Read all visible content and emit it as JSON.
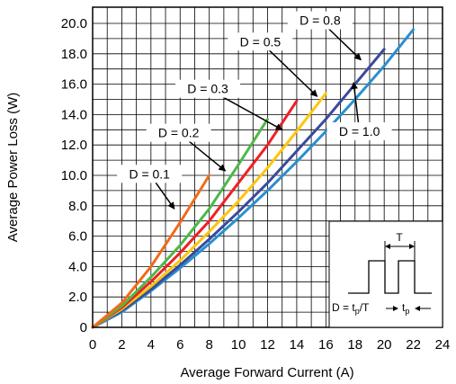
{
  "chart_data": {
    "type": "line",
    "xlabel": "Average Forward Current (A)",
    "ylabel": "Average Power Loss (W)",
    "xlim": [
      0,
      24
    ],
    "ylim": [
      0,
      21
    ],
    "grid": true,
    "x_ticks": [
      "0",
      "2",
      "4",
      "6",
      "8",
      "10",
      "12",
      "14",
      "16",
      "18",
      "20",
      "22",
      "24"
    ],
    "y_ticks": [
      "0",
      "2.0",
      "4.0",
      "6.0",
      "8.0",
      "10.0",
      "12.0",
      "14.0",
      "16.0",
      "18.0",
      "20.0"
    ],
    "series": [
      {
        "name": "D = 0.1",
        "color": "#f26a1b",
        "x": [
          0,
          2,
          4,
          6,
          8
        ],
        "y": [
          0,
          1.6,
          4.0,
          6.9,
          10.0
        ]
      },
      {
        "name": "D = 0.2",
        "color": "#4db848",
        "x": [
          0,
          2,
          4,
          6,
          8,
          10,
          12
        ],
        "y": [
          0,
          1.4,
          3.3,
          5.4,
          7.8,
          10.7,
          13.7
        ]
      },
      {
        "name": "D = 0.3",
        "color": "#ee2024",
        "x": [
          0,
          2,
          4,
          6,
          8,
          10,
          12,
          14
        ],
        "y": [
          0,
          1.3,
          3.0,
          4.9,
          7.0,
          9.5,
          12.0,
          14.9
        ]
      },
      {
        "name": "D = 0.5",
        "color": "#fdc60b",
        "x": [
          0,
          2,
          4,
          6,
          8,
          10,
          12,
          14,
          16
        ],
        "y": [
          0,
          1.2,
          2.7,
          4.4,
          6.3,
          8.3,
          10.5,
          12.9,
          15.4
        ]
      },
      {
        "name": "D = 0.8",
        "color": "#3a4a9c",
        "x": [
          0,
          2,
          4,
          6,
          8,
          10,
          12,
          14,
          16,
          18,
          20
        ],
        "y": [
          0,
          1.1,
          2.5,
          4.1,
          5.8,
          7.6,
          9.5,
          11.6,
          13.7,
          16.0,
          18.3
        ]
      },
      {
        "name": "D = 1.0",
        "color": "#2a8fd0",
        "x": [
          0,
          2,
          4,
          6,
          8,
          10,
          12,
          14,
          16,
          18,
          20,
          22
        ],
        "y": [
          0,
          1.0,
          2.4,
          3.9,
          5.5,
          7.2,
          9.0,
          10.9,
          12.9,
          15.0,
          17.2,
          19.6
        ]
      }
    ],
    "inset": {
      "period_label": "T",
      "duty_label_prefix": "D = t",
      "duty_label_sub": "p",
      "duty_label_suffix": "/T",
      "pulse_label": "t",
      "pulse_label_sub": "p"
    }
  }
}
